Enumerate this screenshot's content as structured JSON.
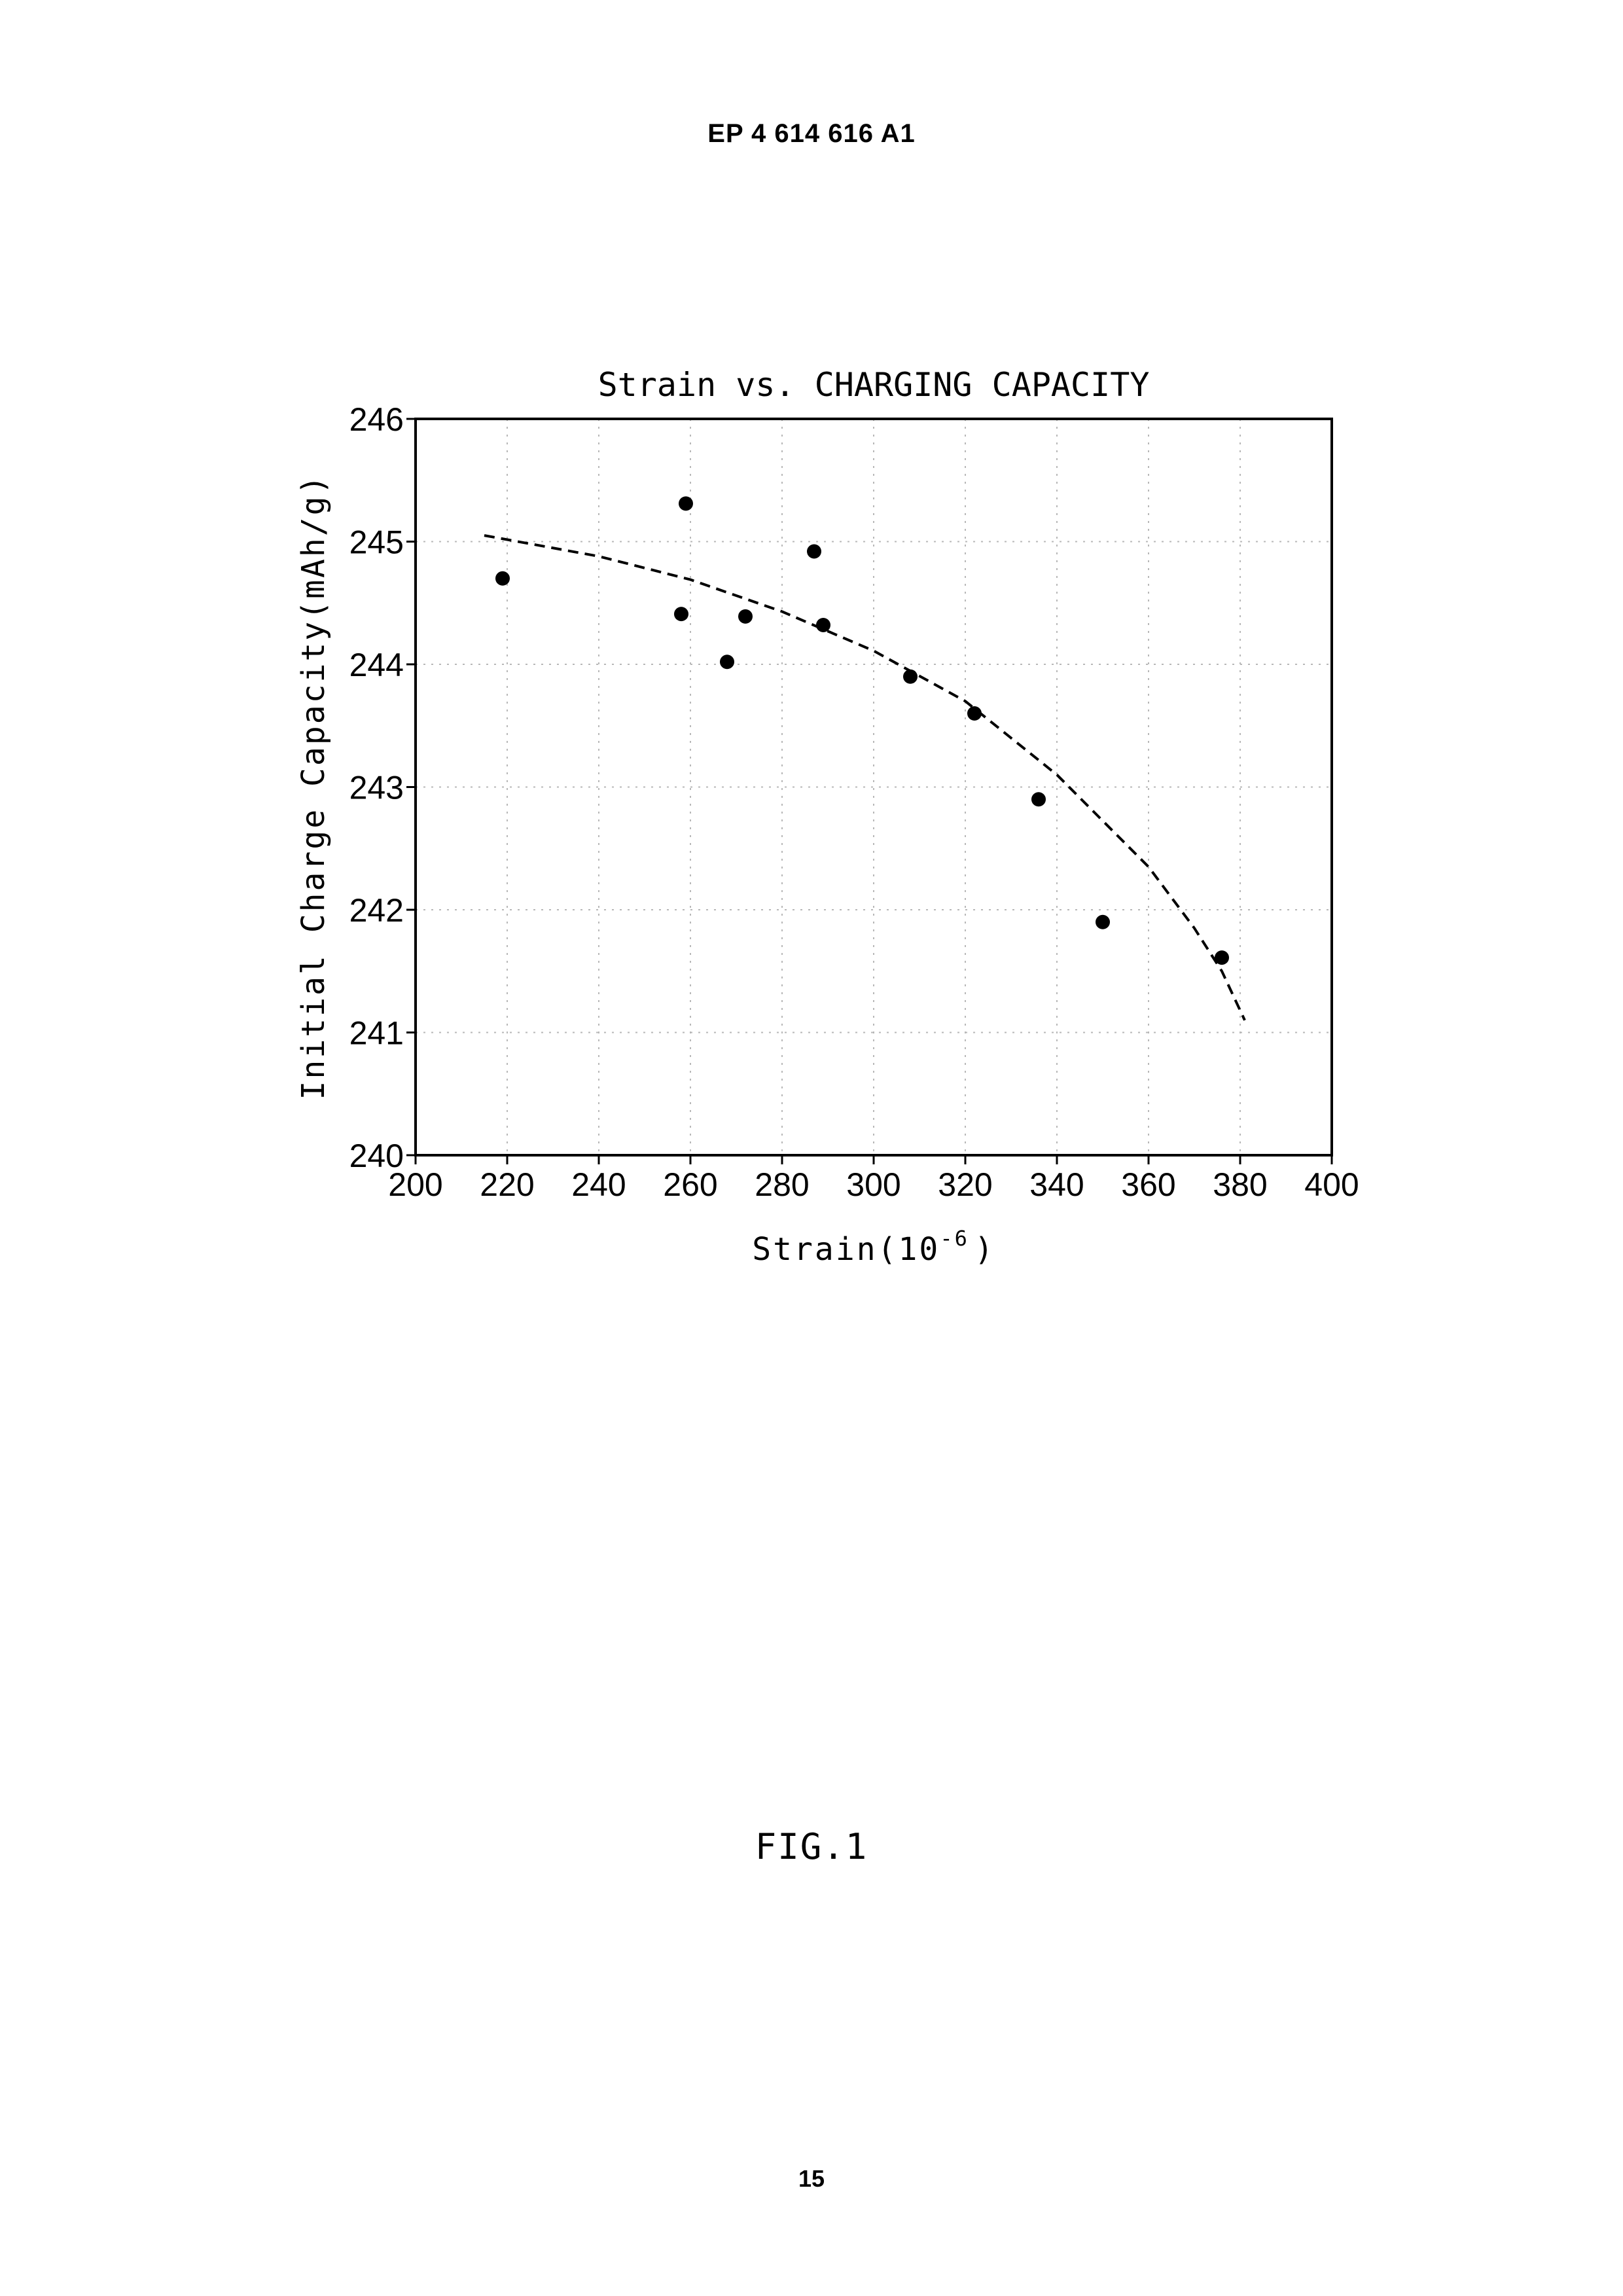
{
  "document": {
    "header": "EP 4 614 616 A1",
    "figure_caption": "FIG.1",
    "page_number": "15"
  },
  "chart_data": {
    "type": "scatter",
    "title": "Strain vs. CHARGING CAPACITY",
    "xlabel": "Strain(10",
    "xlabel_exponent": "-6",
    "xlabel_close": ")",
    "ylabel": "Initial Charge Capacity(mAh/g)",
    "xlim": [
      200,
      400
    ],
    "ylim": [
      240,
      246
    ],
    "xticks": [
      200,
      220,
      240,
      260,
      280,
      300,
      320,
      340,
      360,
      380,
      400
    ],
    "yticks": [
      240,
      241,
      242,
      243,
      244,
      245,
      246
    ],
    "grid": true,
    "legend": "none",
    "points": [
      {
        "x": 219,
        "y": 244.7
      },
      {
        "x": 258,
        "y": 244.41
      },
      {
        "x": 259,
        "y": 245.31
      },
      {
        "x": 268,
        "y": 244.02
      },
      {
        "x": 272,
        "y": 244.39
      },
      {
        "x": 287,
        "y": 244.92
      },
      {
        "x": 289,
        "y": 244.32
      },
      {
        "x": 308,
        "y": 243.9
      },
      {
        "x": 322,
        "y": 243.6
      },
      {
        "x": 336,
        "y": 242.9
      },
      {
        "x": 350,
        "y": 241.9
      },
      {
        "x": 376,
        "y": 241.61
      }
    ],
    "trendline": {
      "style": "dashed",
      "points": [
        {
          "x": 215,
          "y": 245.05
        },
        {
          "x": 240,
          "y": 244.88
        },
        {
          "x": 260,
          "y": 244.69
        },
        {
          "x": 280,
          "y": 244.43
        },
        {
          "x": 300,
          "y": 244.11
        },
        {
          "x": 320,
          "y": 243.7
        },
        {
          "x": 340,
          "y": 243.1
        },
        {
          "x": 360,
          "y": 242.35
        },
        {
          "x": 370,
          "y": 241.85
        },
        {
          "x": 376,
          "y": 241.5
        },
        {
          "x": 381,
          "y": 241.1
        }
      ]
    }
  }
}
